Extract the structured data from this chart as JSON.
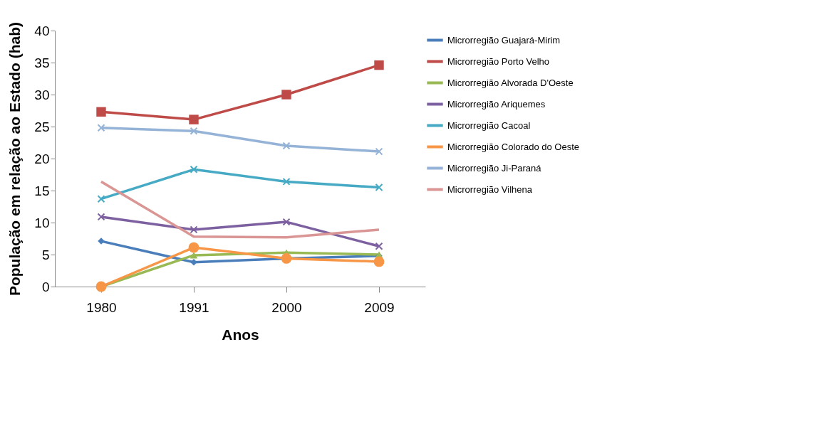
{
  "chart_data": {
    "type": "line",
    "xlabel": "Anos",
    "ylabel": "População em relação ao Estado (hab)",
    "categories": [
      "1980",
      "1991",
      "2000",
      "2009"
    ],
    "ylim": [
      0,
      40
    ],
    "yticks": [
      0,
      5,
      10,
      15,
      20,
      25,
      30,
      35,
      40
    ],
    "grid": false,
    "legend": "right",
    "line_style": "solid",
    "series": [
      {
        "name": "Microrregião Guajará-Mirim",
        "color": "#4a7ebb",
        "marker": "diamond",
        "values": [
          7.1,
          3.8,
          4.4,
          4.8
        ]
      },
      {
        "name": "Microrregião Porto Velho",
        "color": "#be4b48",
        "marker": "square",
        "values": [
          27.3,
          26.1,
          30.0,
          34.6
        ]
      },
      {
        "name": "Microrregião Alvorada D'Oeste",
        "color": "#98b954",
        "marker": "triangle",
        "values": [
          0,
          4.9,
          5.3,
          5.0
        ]
      },
      {
        "name": "Microrregião Ariquemes",
        "color": "#7d60a0",
        "marker": "cross",
        "values": [
          10.9,
          8.9,
          10.1,
          6.3
        ]
      },
      {
        "name": "Microrregião Cacoal",
        "color": "#46aac5",
        "marker": "cross",
        "values": [
          13.7,
          18.3,
          16.4,
          15.5
        ]
      },
      {
        "name": "Microrregião Colorado do Oeste",
        "color": "#f79646",
        "marker": "circle",
        "values": [
          0,
          6.1,
          4.4,
          3.9
        ]
      },
      {
        "name": "Microrregião Ji-Paraná",
        "color": "#95b3d7",
        "marker": "cross",
        "values": [
          24.8,
          24.3,
          22.0,
          21.1
        ]
      },
      {
        "name": "Microrregião Vilhena",
        "color": "#d99694",
        "marker": "none",
        "values": [
          16.4,
          7.8,
          7.7,
          8.9
        ]
      }
    ]
  }
}
